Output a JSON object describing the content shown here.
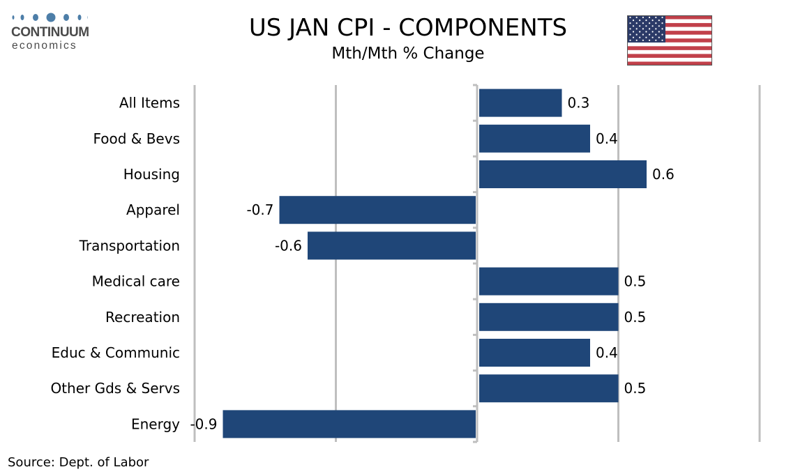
{
  "logo": {
    "word": "CONTINUUM",
    "sub": "economics"
  },
  "header": {
    "title": "US JAN CPI - COMPONENTS",
    "subtitle": "Mth/Mth % Change"
  },
  "flag_icon": "us-flag-icon",
  "colors": {
    "bar": "#1f4678",
    "grid": "#bfbfbf",
    "logo": "#4d7ea8"
  },
  "source": "Source: Dept. of Labor",
  "chart_data": {
    "type": "bar",
    "orientation": "horizontal",
    "title": "US JAN CPI - COMPONENTS",
    "subtitle": "Mth/Mth % Change",
    "categories": [
      "All Items",
      "Food & Bevs",
      "Housing",
      "Apparel ",
      "Transportation",
      "Medical care",
      "Recreation",
      "Educ & Communic",
      "Other Gds & Servs",
      "Energy"
    ],
    "values": [
      0.3,
      0.4,
      0.6,
      -0.7,
      -0.6,
      0.5,
      0.5,
      0.4,
      0.5,
      -0.9
    ],
    "value_labels": [
      "0.3",
      "0.4",
      "0.6",
      "-0.7",
      "-0.6",
      "0.5",
      "0.5",
      "0.4",
      "0.5",
      "-0.9"
    ],
    "xlim": [
      -1.0,
      1.0
    ],
    "grid": true,
    "legend": "none"
  }
}
